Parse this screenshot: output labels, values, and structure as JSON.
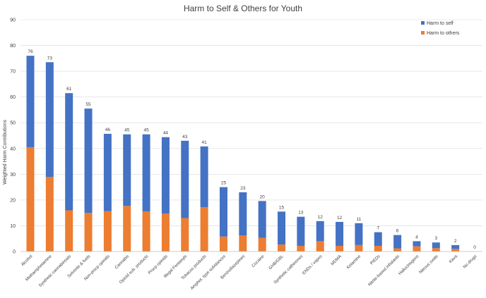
{
  "chart_data": {
    "type": "bar",
    "stacked": true,
    "title": "Harm to Self & Others for Youth",
    "ylabel": "Weighted Harm Contributions",
    "xlabel": "",
    "ylim": [
      0,
      90
    ],
    "yticks": [
      0,
      10,
      20,
      30,
      40,
      50,
      60,
      70,
      80,
      90
    ],
    "grid": "horizontal",
    "legend_position": "top-right",
    "categories": [
      "Alcohol",
      "Methamphetamine",
      "Synthetic cannabinoids",
      "Solvents & fuels",
      "Non-prscp opioids",
      "Cannabis",
      "Opioid sub. products",
      "Prscp opioids",
      "Illegal Fentanyls",
      "Tobacco products",
      "Amphet. type substances",
      "Benzodiazepines",
      "Cocaine",
      "GHB/GBL",
      "Synthetic cathinones",
      "ENDs / vapes",
      "MDMA",
      "Ketamine",
      "PIEDs",
      "Nitrite-based inhalants",
      "Hallucinogens",
      "Nitrous oxide",
      "Kava",
      "No drugs"
    ],
    "totals_labels": [
      "76",
      "73",
      "61",
      "55",
      "46",
      "45",
      "45",
      "44",
      "43",
      "41",
      "25",
      "23",
      "20",
      "15",
      "13",
      "12",
      "12",
      "11",
      "7",
      "6",
      "4",
      "3",
      "2",
      "0"
    ],
    "series": [
      {
        "name": "Harm to others",
        "color": "#ed7d31",
        "values": [
          40.5,
          29,
          16,
          15,
          15.7,
          17.7,
          15.6,
          14.7,
          13,
          17.2,
          5.8,
          6.2,
          5.3,
          2.7,
          2.2,
          4,
          2.2,
          2.5,
          2.2,
          1.2,
          2,
          1.3,
          1,
          0
        ]
      },
      {
        "name": "Harm to self",
        "color": "#4472c4",
        "values": [
          35.5,
          44.5,
          45.5,
          40.5,
          30,
          27.8,
          29.9,
          29.7,
          30,
          23.6,
          19.2,
          16.8,
          14.3,
          12.8,
          11.3,
          7.8,
          9.3,
          8.5,
          5.3,
          5.2,
          2,
          2.2,
          1.5,
          0
        ]
      }
    ],
    "legend": [
      {
        "label": "Harm to self",
        "color": "#4472c4"
      },
      {
        "label": "Harm to others",
        "color": "#ed7d31"
      }
    ]
  }
}
